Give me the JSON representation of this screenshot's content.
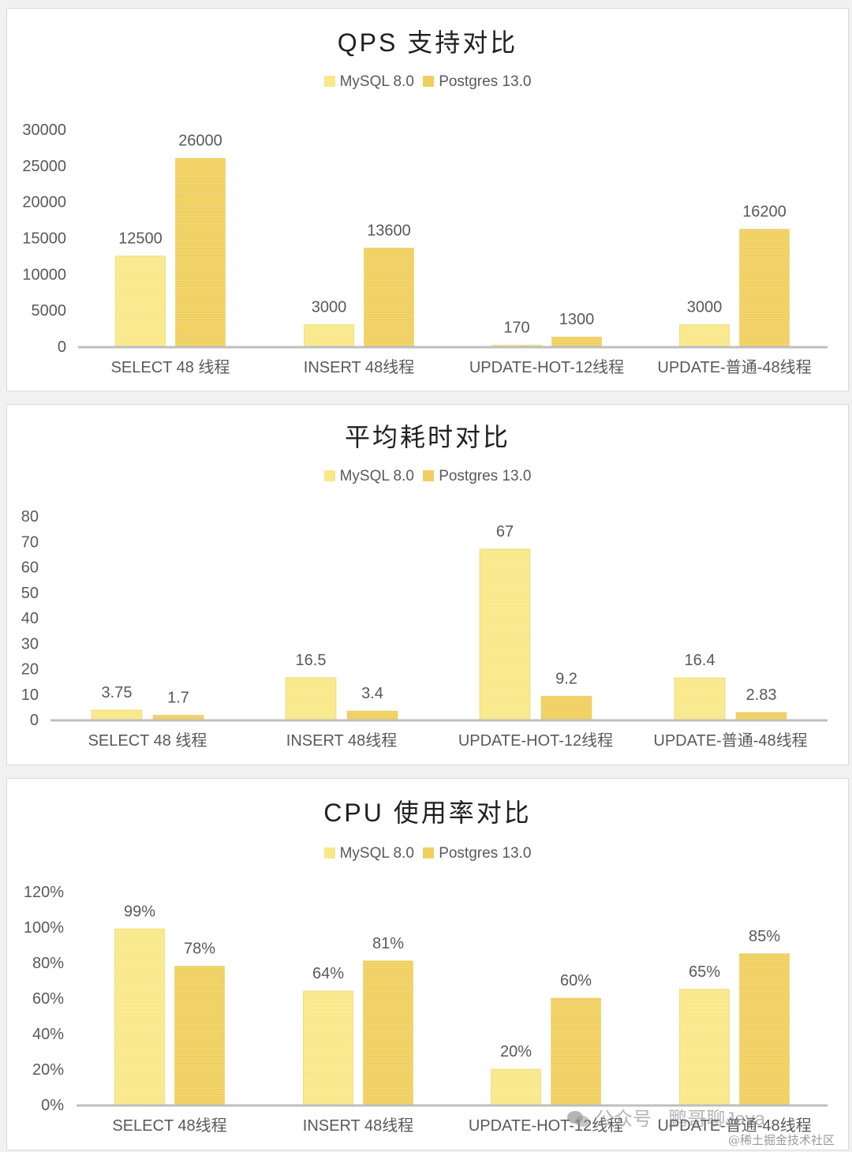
{
  "colors": {
    "mysql": "#f9e887",
    "postgres": "#f0cf5e",
    "axis": "#bfbfbf",
    "label": "#595959"
  },
  "legend": {
    "mysql": "MySQL 8.0",
    "postgres": "Postgres 13.0"
  },
  "chart_data": [
    {
      "type": "bar",
      "title": "QPS 支持对比",
      "categories": [
        "SELECT 48 线程",
        "INSERT 48线程",
        "UPDATE-HOT-12线程",
        "UPDATE-普通-48线程"
      ],
      "series": [
        {
          "name": "MySQL 8.0",
          "values": [
            12500,
            3000,
            170,
            3000
          ],
          "labels": [
            "12500",
            "3000",
            "170",
            "3000"
          ]
        },
        {
          "name": "Postgres 13.0",
          "values": [
            26000,
            13600,
            1300,
            16200
          ],
          "labels": [
            "26000",
            "13600",
            "1300",
            "16200"
          ]
        }
      ],
      "yticks": [
        "0",
        "5000",
        "10000",
        "15000",
        "20000",
        "25000",
        "30000"
      ],
      "ylim": [
        0,
        30000
      ],
      "legend_position": "top",
      "grid": false
    },
    {
      "type": "bar",
      "title": "平均耗时对比",
      "categories": [
        "SELECT 48 线程",
        "INSERT 48线程",
        "UPDATE-HOT-12线程",
        "UPDATE-普通-48线程"
      ],
      "series": [
        {
          "name": "MySQL 8.0",
          "values": [
            3.75,
            16.5,
            67,
            16.4
          ],
          "labels": [
            "3.75",
            "16.5",
            "67",
            "16.4"
          ]
        },
        {
          "name": "Postgres 13.0",
          "values": [
            1.7,
            3.4,
            9.2,
            2.83
          ],
          "labels": [
            "1.7",
            "3.4",
            "9.2",
            "2.83"
          ]
        }
      ],
      "yticks": [
        "0",
        "10",
        "20",
        "30",
        "40",
        "50",
        "60",
        "70",
        "80"
      ],
      "ylim": [
        0,
        80
      ],
      "legend_position": "top",
      "grid": false
    },
    {
      "type": "bar",
      "title": "CPU 使用率对比",
      "categories": [
        "SELECT 48线程",
        "INSERT 48线程",
        "UPDATE-HOT-12线程",
        "UPDATE-普通-48线程"
      ],
      "series": [
        {
          "name": "MySQL 8.0",
          "values": [
            99,
            64,
            20,
            65
          ],
          "labels": [
            "99%",
            "64%",
            "20%",
            "65%"
          ]
        },
        {
          "name": "Postgres 13.0",
          "values": [
            78,
            81,
            60,
            85
          ],
          "labels": [
            "78%",
            "81%",
            "60%",
            "85%"
          ]
        }
      ],
      "yticks": [
        "0%",
        "20%",
        "40%",
        "60%",
        "80%",
        "100%",
        "120%"
      ],
      "ylim": [
        0,
        120
      ],
      "legend_position": "top",
      "grid": false
    }
  ],
  "watermark": {
    "line1": "公众号 · 鹏哥聊Java",
    "line2": "@稀土掘金技术社区"
  }
}
